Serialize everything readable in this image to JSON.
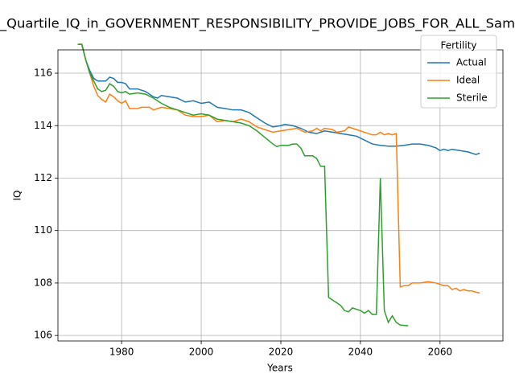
{
  "chart_data": {
    "type": "line",
    "title": "_Quartile_IQ_in_GOVERNMENT_RESPONSIBILITY_PROVIDE_JOBS_FOR_ALL_Sam",
    "xlabel": "Years",
    "ylabel": "IQ",
    "xlim": [
      1964,
      2075.8
    ],
    "ylim": [
      105.79,
      116.89
    ],
    "xticks": [
      1980,
      2000,
      2020,
      2040,
      2060
    ],
    "yticks": [
      106,
      108,
      110,
      112,
      114,
      116
    ],
    "grid": true,
    "legend_title": "Fertility",
    "legend_position": "upper right",
    "series": [
      {
        "name": "Actual",
        "color": "#1f77b4",
        "x": [
          1969,
          1970,
          1971,
          1972,
          1973,
          1974,
          1975,
          1976,
          1977,
          1978,
          1979,
          1980,
          1981,
          1982,
          1984,
          1986,
          1988,
          1989,
          1990,
          1992,
          1994,
          1996,
          1998,
          2000,
          2002,
          2004,
          2006,
          2008,
          2010,
          2012,
          2014,
          2016,
          2018,
          2020,
          2021,
          2023,
          2025,
          2027,
          2029,
          2031,
          2033,
          2035,
          2037,
          2039,
          2041,
          2043,
          2045,
          2047,
          2049,
          2051,
          2053,
          2055,
          2057,
          2059,
          2060,
          2061,
          2062,
          2063,
          2065,
          2067,
          2069,
          2070
        ],
        "values": [
          117.1,
          117.1,
          116.5,
          116.1,
          115.8,
          115.7,
          115.7,
          115.7,
          115.85,
          115.8,
          115.65,
          115.65,
          115.6,
          115.4,
          115.4,
          115.3,
          115.1,
          115.05,
          115.15,
          115.1,
          115.05,
          114.9,
          114.95,
          114.85,
          114.9,
          114.7,
          114.65,
          114.6,
          114.6,
          114.5,
          114.3,
          114.1,
          113.95,
          114.0,
          114.05,
          114.0,
          113.9,
          113.75,
          113.7,
          113.8,
          113.75,
          113.7,
          113.65,
          113.6,
          113.45,
          113.3,
          113.25,
          113.22,
          113.22,
          113.25,
          113.3,
          113.3,
          113.25,
          113.15,
          113.05,
          113.1,
          113.05,
          113.1,
          113.05,
          113.0,
          112.9,
          112.95
        ]
      },
      {
        "name": "Ideal",
        "color": "#ff7f0e",
        "x": [
          1969,
          1970,
          1971,
          1972,
          1973,
          1974,
          1975,
          1976,
          1977,
          1978,
          1979,
          1980,
          1981,
          1982,
          1984,
          1985,
          1987,
          1988,
          1990,
          1992,
          1994,
          1996,
          1998,
          2000,
          2002,
          2004,
          2006,
          2008,
          2010,
          2012,
          2014,
          2016,
          2018,
          2020,
          2022,
          2024,
          2026,
          2028,
          2029,
          2030,
          2031,
          2033,
          2034,
          2036,
          2037,
          2039,
          2041,
          2043,
          2044,
          2045,
          2046,
          2047,
          2048,
          2049,
          2050,
          2051,
          2052,
          2053,
          2055,
          2057,
          2059,
          2061,
          2062,
          2063,
          2064,
          2065,
          2066,
          2067,
          2068,
          2069,
          2070
        ],
        "values": [
          117.1,
          117.1,
          116.5,
          116.0,
          115.5,
          115.15,
          115.0,
          114.9,
          115.2,
          115.1,
          114.95,
          114.85,
          114.95,
          114.65,
          114.65,
          114.7,
          114.7,
          114.6,
          114.7,
          114.65,
          114.6,
          114.4,
          114.35,
          114.35,
          114.4,
          114.15,
          114.2,
          114.15,
          114.25,
          114.15,
          113.95,
          113.85,
          113.75,
          113.8,
          113.85,
          113.9,
          113.75,
          113.8,
          113.9,
          113.8,
          113.9,
          113.85,
          113.75,
          113.8,
          113.95,
          113.85,
          113.75,
          113.65,
          113.65,
          113.75,
          113.65,
          113.7,
          113.65,
          113.7,
          107.85,
          107.9,
          107.9,
          108.0,
          108.0,
          108.05,
          108.0,
          107.9,
          107.9,
          107.75,
          107.8,
          107.7,
          107.75,
          107.7,
          107.7,
          107.65,
          107.62
        ]
      },
      {
        "name": "Sterile",
        "color": "#2ca02c",
        "x": [
          1969,
          1970,
          1971,
          1972,
          1973,
          1974,
          1975,
          1976,
          1977,
          1978,
          1979,
          1980,
          1981,
          1982,
          1984,
          1986,
          1988,
          1990,
          1992,
          1994,
          1996,
          1998,
          2000,
          2002,
          2004,
          2006,
          2008,
          2010,
          2012,
          2014,
          2016,
          2018,
          2019,
          2020,
          2022,
          2023,
          2024,
          2025,
          2026,
          2028,
          2029,
          2030,
          2031,
          2032,
          2033,
          2035,
          2036,
          2037,
          2038,
          2039,
          2040,
          2041,
          2042,
          2043,
          2044,
          2045,
          2046,
          2047,
          2048,
          2049,
          2050,
          2052
        ],
        "values": [
          117.1,
          117.1,
          116.5,
          116.0,
          115.7,
          115.4,
          115.3,
          115.35,
          115.6,
          115.5,
          115.3,
          115.25,
          115.3,
          115.2,
          115.25,
          115.2,
          115.05,
          114.85,
          114.7,
          114.6,
          114.5,
          114.4,
          114.45,
          114.4,
          114.25,
          114.2,
          114.15,
          114.1,
          114.0,
          113.8,
          113.55,
          113.3,
          113.2,
          113.25,
          113.25,
          113.3,
          113.3,
          113.15,
          112.85,
          112.85,
          112.75,
          112.45,
          112.45,
          107.45,
          107.35,
          107.15,
          106.95,
          106.9,
          107.05,
          107.0,
          106.95,
          106.85,
          106.95,
          106.8,
          106.8,
          112.0,
          106.95,
          106.5,
          106.75,
          106.5,
          106.4,
          106.37
        ]
      }
    ]
  }
}
